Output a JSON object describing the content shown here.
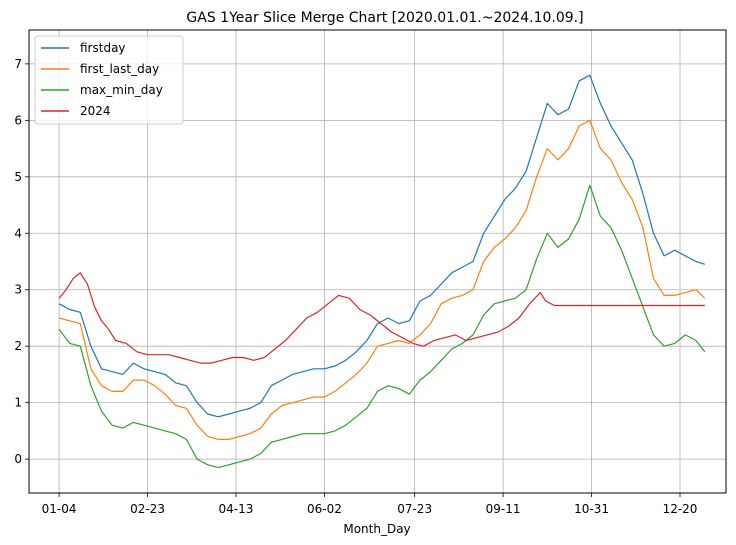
{
  "chart_data": {
    "type": "line",
    "title": "GAS 1Year Slice Merge Chart [2020.01.01.~2024.10.09.]",
    "xlabel": "Month_Day",
    "ylabel": "",
    "x_ticks": [
      "01-04",
      "02-23",
      "04-13",
      "06-02",
      "07-23",
      "09-11",
      "10-31",
      "12-20"
    ],
    "x_tick_days": [
      0,
      50,
      100,
      150,
      201,
      251,
      301,
      351
    ],
    "xlim": [
      -17,
      377
    ],
    "y_ticks": [
      0,
      1,
      2,
      3,
      4,
      5,
      6,
      7
    ],
    "ylim": [
      -0.6,
      7.6
    ],
    "grid": true,
    "legend_position": "upper-left",
    "series": [
      {
        "name": "firstday",
        "color": "#1f77b4",
        "points": [
          [
            0,
            2.75
          ],
          [
            6,
            2.65
          ],
          [
            12,
            2.6
          ],
          [
            18,
            2.0
          ],
          [
            24,
            1.6
          ],
          [
            30,
            1.55
          ],
          [
            36,
            1.5
          ],
          [
            42,
            1.7
          ],
          [
            48,
            1.6
          ],
          [
            54,
            1.55
          ],
          [
            60,
            1.5
          ],
          [
            66,
            1.35
          ],
          [
            72,
            1.3
          ],
          [
            78,
            1.0
          ],
          [
            84,
            0.8
          ],
          [
            90,
            0.75
          ],
          [
            96,
            0.8
          ],
          [
            102,
            0.85
          ],
          [
            108,
            0.9
          ],
          [
            114,
            1.0
          ],
          [
            120,
            1.3
          ],
          [
            126,
            1.4
          ],
          [
            132,
            1.5
          ],
          [
            138,
            1.55
          ],
          [
            144,
            1.6
          ],
          [
            150,
            1.6
          ],
          [
            156,
            1.65
          ],
          [
            162,
            1.75
          ],
          [
            168,
            1.9
          ],
          [
            174,
            2.1
          ],
          [
            180,
            2.4
          ],
          [
            186,
            2.5
          ],
          [
            192,
            2.4
          ],
          [
            198,
            2.45
          ],
          [
            204,
            2.8
          ],
          [
            210,
            2.9
          ],
          [
            216,
            3.1
          ],
          [
            222,
            3.3
          ],
          [
            228,
            3.4
          ],
          [
            234,
            3.5
          ],
          [
            240,
            4.0
          ],
          [
            246,
            4.3
          ],
          [
            252,
            4.6
          ],
          [
            258,
            4.8
          ],
          [
            264,
            5.1
          ],
          [
            270,
            5.7
          ],
          [
            276,
            6.3
          ],
          [
            282,
            6.1
          ],
          [
            288,
            6.2
          ],
          [
            294,
            6.7
          ],
          [
            300,
            6.8
          ],
          [
            306,
            6.3
          ],
          [
            312,
            5.9
          ],
          [
            318,
            5.6
          ],
          [
            324,
            5.3
          ],
          [
            330,
            4.7
          ],
          [
            336,
            4.0
          ],
          [
            342,
            3.6
          ],
          [
            348,
            3.7
          ],
          [
            354,
            3.6
          ],
          [
            360,
            3.5
          ],
          [
            365,
            3.45
          ]
        ]
      },
      {
        "name": "first_last_day",
        "color": "#ff7f0e",
        "points": [
          [
            0,
            2.5
          ],
          [
            6,
            2.45
          ],
          [
            12,
            2.4
          ],
          [
            18,
            1.6
          ],
          [
            24,
            1.3
          ],
          [
            30,
            1.2
          ],
          [
            36,
            1.2
          ],
          [
            42,
            1.4
          ],
          [
            48,
            1.4
          ],
          [
            54,
            1.3
          ],
          [
            60,
            1.15
          ],
          [
            66,
            0.95
          ],
          [
            72,
            0.9
          ],
          [
            78,
            0.6
          ],
          [
            84,
            0.4
          ],
          [
            90,
            0.35
          ],
          [
            96,
            0.35
          ],
          [
            102,
            0.4
          ],
          [
            108,
            0.45
          ],
          [
            114,
            0.55
          ],
          [
            120,
            0.8
          ],
          [
            126,
            0.95
          ],
          [
            132,
            1.0
          ],
          [
            138,
            1.05
          ],
          [
            144,
            1.1
          ],
          [
            150,
            1.1
          ],
          [
            156,
            1.2
          ],
          [
            162,
            1.35
          ],
          [
            168,
            1.5
          ],
          [
            174,
            1.7
          ],
          [
            180,
            2.0
          ],
          [
            186,
            2.05
          ],
          [
            192,
            2.1
          ],
          [
            198,
            2.05
          ],
          [
            204,
            2.2
          ],
          [
            210,
            2.4
          ],
          [
            216,
            2.75
          ],
          [
            222,
            2.85
          ],
          [
            228,
            2.9
          ],
          [
            234,
            3.0
          ],
          [
            240,
            3.5
          ],
          [
            246,
            3.75
          ],
          [
            252,
            3.9
          ],
          [
            258,
            4.1
          ],
          [
            264,
            4.4
          ],
          [
            270,
            5.0
          ],
          [
            276,
            5.5
          ],
          [
            282,
            5.3
          ],
          [
            288,
            5.5
          ],
          [
            294,
            5.9
          ],
          [
            300,
            6.0
          ],
          [
            306,
            5.5
          ],
          [
            312,
            5.3
          ],
          [
            318,
            4.9
          ],
          [
            324,
            4.6
          ],
          [
            330,
            4.1
          ],
          [
            336,
            3.2
          ],
          [
            342,
            2.9
          ],
          [
            348,
            2.9
          ],
          [
            354,
            2.95
          ],
          [
            360,
            3.0
          ],
          [
            365,
            2.85
          ]
        ]
      },
      {
        "name": "max_min_day",
        "color": "#2ca02c",
        "points": [
          [
            0,
            2.3
          ],
          [
            6,
            2.05
          ],
          [
            12,
            2.0
          ],
          [
            18,
            1.3
          ],
          [
            24,
            0.85
          ],
          [
            30,
            0.6
          ],
          [
            36,
            0.55
          ],
          [
            42,
            0.65
          ],
          [
            48,
            0.6
          ],
          [
            54,
            0.55
          ],
          [
            60,
            0.5
          ],
          [
            66,
            0.45
          ],
          [
            72,
            0.35
          ],
          [
            78,
            0.0
          ],
          [
            84,
            -0.1
          ],
          [
            90,
            -0.15
          ],
          [
            96,
            -0.1
          ],
          [
            102,
            -0.05
          ],
          [
            108,
            0.0
          ],
          [
            114,
            0.1
          ],
          [
            120,
            0.3
          ],
          [
            126,
            0.35
          ],
          [
            132,
            0.4
          ],
          [
            138,
            0.45
          ],
          [
            144,
            0.45
          ],
          [
            150,
            0.45
          ],
          [
            156,
            0.5
          ],
          [
            162,
            0.6
          ],
          [
            168,
            0.75
          ],
          [
            174,
            0.9
          ],
          [
            180,
            1.2
          ],
          [
            186,
            1.3
          ],
          [
            192,
            1.25
          ],
          [
            198,
            1.15
          ],
          [
            204,
            1.4
          ],
          [
            210,
            1.55
          ],
          [
            216,
            1.75
          ],
          [
            222,
            1.95
          ],
          [
            228,
            2.05
          ],
          [
            234,
            2.2
          ],
          [
            240,
            2.55
          ],
          [
            246,
            2.75
          ],
          [
            252,
            2.8
          ],
          [
            258,
            2.85
          ],
          [
            264,
            3.0
          ],
          [
            270,
            3.55
          ],
          [
            276,
            4.0
          ],
          [
            282,
            3.75
          ],
          [
            288,
            3.9
          ],
          [
            294,
            4.25
          ],
          [
            300,
            4.85
          ],
          [
            306,
            4.3
          ],
          [
            312,
            4.1
          ],
          [
            318,
            3.7
          ],
          [
            324,
            3.2
          ],
          [
            330,
            2.7
          ],
          [
            336,
            2.2
          ],
          [
            342,
            2.0
          ],
          [
            348,
            2.05
          ],
          [
            354,
            2.2
          ],
          [
            360,
            2.1
          ],
          [
            365,
            1.9
          ]
        ]
      },
      {
        "name": "2024",
        "color": "#d62728",
        "points": [
          [
            0,
            2.85
          ],
          [
            4,
            3.0
          ],
          [
            8,
            3.2
          ],
          [
            12,
            3.3
          ],
          [
            16,
            3.1
          ],
          [
            20,
            2.7
          ],
          [
            24,
            2.45
          ],
          [
            28,
            2.3
          ],
          [
            32,
            2.1
          ],
          [
            38,
            2.05
          ],
          [
            44,
            1.9
          ],
          [
            50,
            1.85
          ],
          [
            56,
            1.85
          ],
          [
            62,
            1.85
          ],
          [
            68,
            1.8
          ],
          [
            74,
            1.75
          ],
          [
            80,
            1.7
          ],
          [
            86,
            1.7
          ],
          [
            92,
            1.75
          ],
          [
            98,
            1.8
          ],
          [
            104,
            1.8
          ],
          [
            110,
            1.75
          ],
          [
            116,
            1.8
          ],
          [
            122,
            1.95
          ],
          [
            128,
            2.1
          ],
          [
            134,
            2.3
          ],
          [
            140,
            2.5
          ],
          [
            146,
            2.6
          ],
          [
            152,
            2.75
          ],
          [
            158,
            2.9
          ],
          [
            164,
            2.85
          ],
          [
            170,
            2.65
          ],
          [
            176,
            2.55
          ],
          [
            182,
            2.4
          ],
          [
            188,
            2.25
          ],
          [
            194,
            2.15
          ],
          [
            200,
            2.05
          ],
          [
            206,
            2.0
          ],
          [
            212,
            2.1
          ],
          [
            218,
            2.15
          ],
          [
            224,
            2.2
          ],
          [
            230,
            2.1
          ],
          [
            236,
            2.15
          ],
          [
            242,
            2.2
          ],
          [
            248,
            2.25
          ],
          [
            254,
            2.35
          ],
          [
            260,
            2.5
          ],
          [
            266,
            2.75
          ],
          [
            272,
            2.95
          ],
          [
            275,
            2.8
          ],
          [
            280,
            2.72
          ],
          [
            300,
            2.72
          ],
          [
            320,
            2.72
          ],
          [
            340,
            2.72
          ],
          [
            365,
            2.72
          ]
        ]
      }
    ]
  }
}
